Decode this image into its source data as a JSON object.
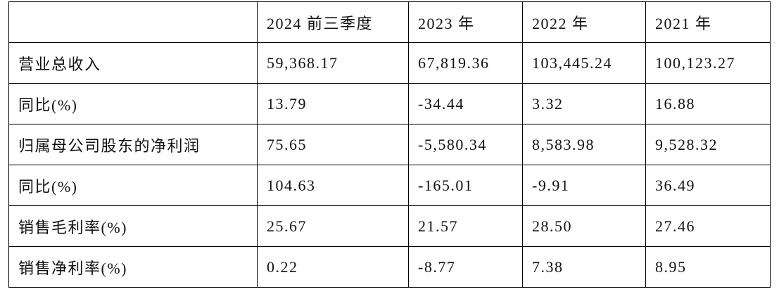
{
  "table": {
    "columns": [
      "2024 前三季度",
      "2023 年",
      "2022 年",
      "2021 年"
    ],
    "rows": [
      {
        "label": "营业总收入",
        "cells": [
          "59,368.17",
          "67,819.36",
          "103,445.24",
          "100,123.27"
        ]
      },
      {
        "label": "同比(%)",
        "cells": [
          "13.79",
          "-34.44",
          "3.32",
          "16.88"
        ]
      },
      {
        "label": "归属母公司股东的净利润",
        "cells": [
          "75.65",
          "-5,580.34",
          "8,583.98",
          "9,528.32"
        ]
      },
      {
        "label": "同比(%)",
        "cells": [
          "104.63",
          "-165.01",
          "-9.91",
          "36.49"
        ]
      },
      {
        "label": "销售毛利率(%)",
        "cells": [
          "25.67",
          "21.57",
          "28.50",
          "27.46"
        ]
      },
      {
        "label": "销售净利率(%)",
        "cells": [
          "0.22",
          "-8.77",
          "7.38",
          "8.95"
        ]
      }
    ]
  }
}
